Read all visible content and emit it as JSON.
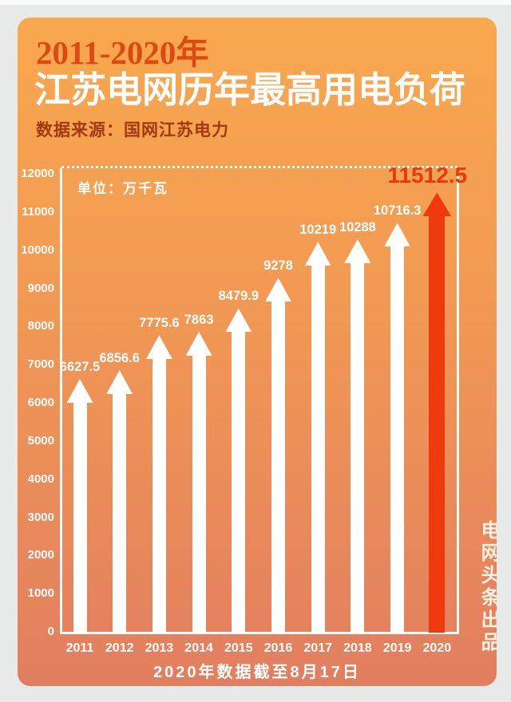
{
  "page": {
    "background_color": "#e7eae9",
    "top_strip_color": "#fbfdfd"
  },
  "card": {
    "gradient_top": "#f8a84e",
    "gradient_bottom": "#e17e60"
  },
  "header": {
    "period": "2011-2020年",
    "period_color": "#dc4a12",
    "title": "江苏电网历年最高用电负荷",
    "title_color": "#ffffff",
    "source": "数据来源：国网江苏电力",
    "source_color": "#a33910"
  },
  "chart_data": {
    "type": "bar",
    "title": "江苏电网历年最高用电负荷",
    "unit_label": "单位：万千瓦",
    "categories": [
      "2011",
      "2012",
      "2013",
      "2014",
      "2015",
      "2016",
      "2017",
      "2018",
      "2019",
      "2020"
    ],
    "values": [
      6627.5,
      6856.6,
      7775.6,
      7863,
      8479.9,
      9278,
      10219,
      10288,
      10716.3,
      11512.5
    ],
    "value_labels": [
      "6627.5",
      "6856.6",
      "7775.6",
      "7863",
      "8479.9",
      "9278",
      "10219",
      "10288",
      "10716.3",
      "11512.5"
    ],
    "yticks": [
      "0",
      "1000",
      "2000",
      "3000",
      "4000",
      "5000",
      "6000",
      "7000",
      "8000",
      "9000",
      "10000",
      "11000",
      "12000"
    ],
    "ylim": [
      0,
      12000
    ],
    "ytick_step": 1000,
    "grid": false,
    "legend": false,
    "bar_color": "#ffffff",
    "highlight_index": 9,
    "highlight_color": "#ee3a0c",
    "highlight_label_color": "#e93a0e",
    "axis_color": "#ffffff",
    "top_border_style": "dotted"
  },
  "footer": {
    "note": "2020年数据截至8月17日"
  },
  "side_caption": {
    "text": "电网头条出品"
  }
}
